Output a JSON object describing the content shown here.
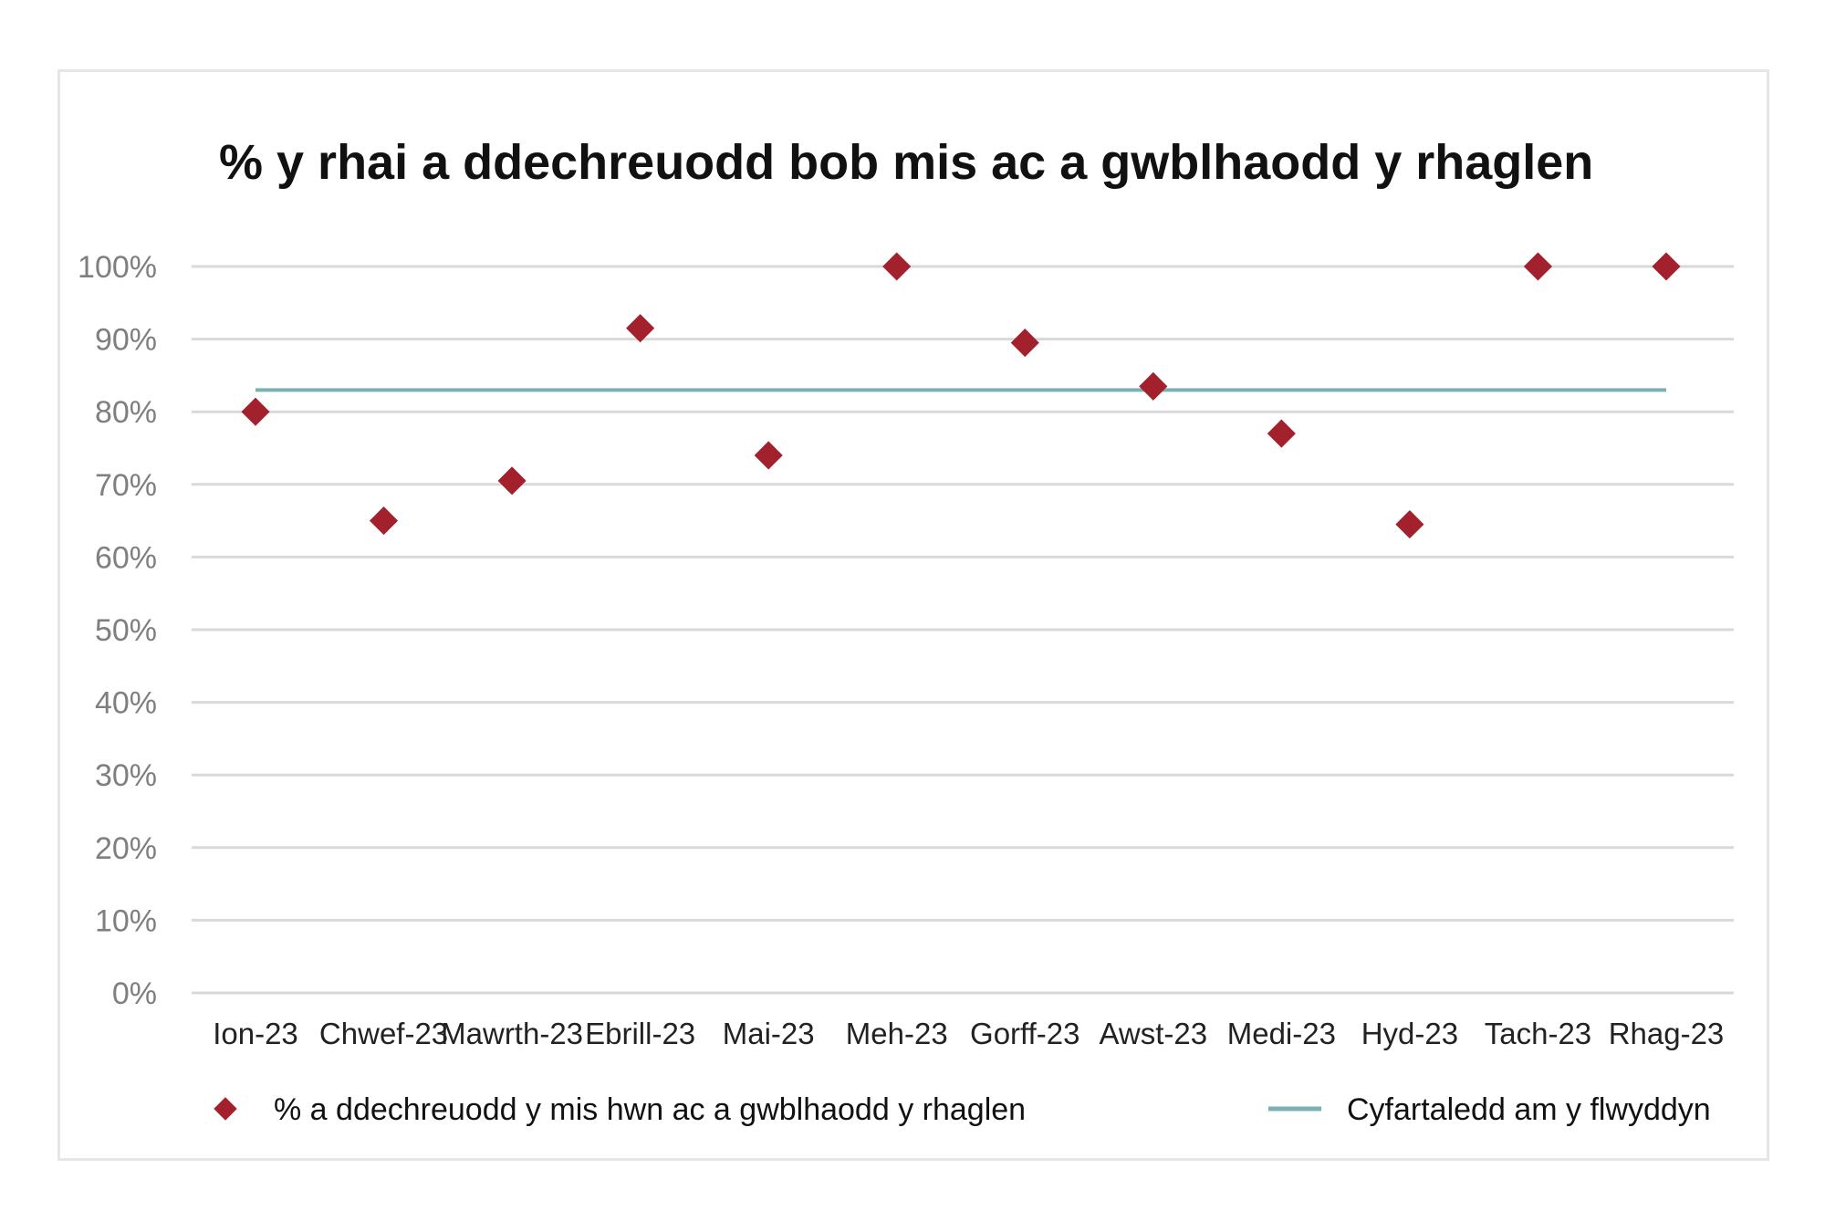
{
  "chart_data": {
    "type": "scatter",
    "title": "% y rhai a ddechreuodd bob mis ac a gwblhaodd y rhaglen",
    "categories": [
      "Ion-23",
      "Chwef-23",
      "Mawrth-23",
      "Ebrill-23",
      "Mai-23",
      "Meh-23",
      "Gorff-23",
      "Awst-23",
      "Medi-23",
      "Hyd-23",
      "Tach-23",
      "Rhag-23"
    ],
    "ylim": [
      0,
      100
    ],
    "yticks": [
      "0%",
      "10%",
      "20%",
      "30%",
      "40%",
      "50%",
      "60%",
      "70%",
      "80%",
      "90%",
      "100%"
    ],
    "grid": true,
    "legend_position": "bottom",
    "series": [
      {
        "name": "% a ddechreuodd y mis hwn ac a gwblhaodd y rhaglen",
        "kind": "scatter",
        "marker": "diamond",
        "color": "#a3202d",
        "values": [
          80,
          65,
          70.5,
          91.5,
          74,
          100,
          89.5,
          83.5,
          77,
          64.5,
          100,
          100
        ]
      },
      {
        "name": "Cyfartaledd am y flwyddyn",
        "kind": "line",
        "color": "#79b1b4",
        "values": [
          83,
          83,
          83,
          83,
          83,
          83,
          83,
          83,
          83,
          83,
          83,
          83
        ]
      }
    ]
  }
}
